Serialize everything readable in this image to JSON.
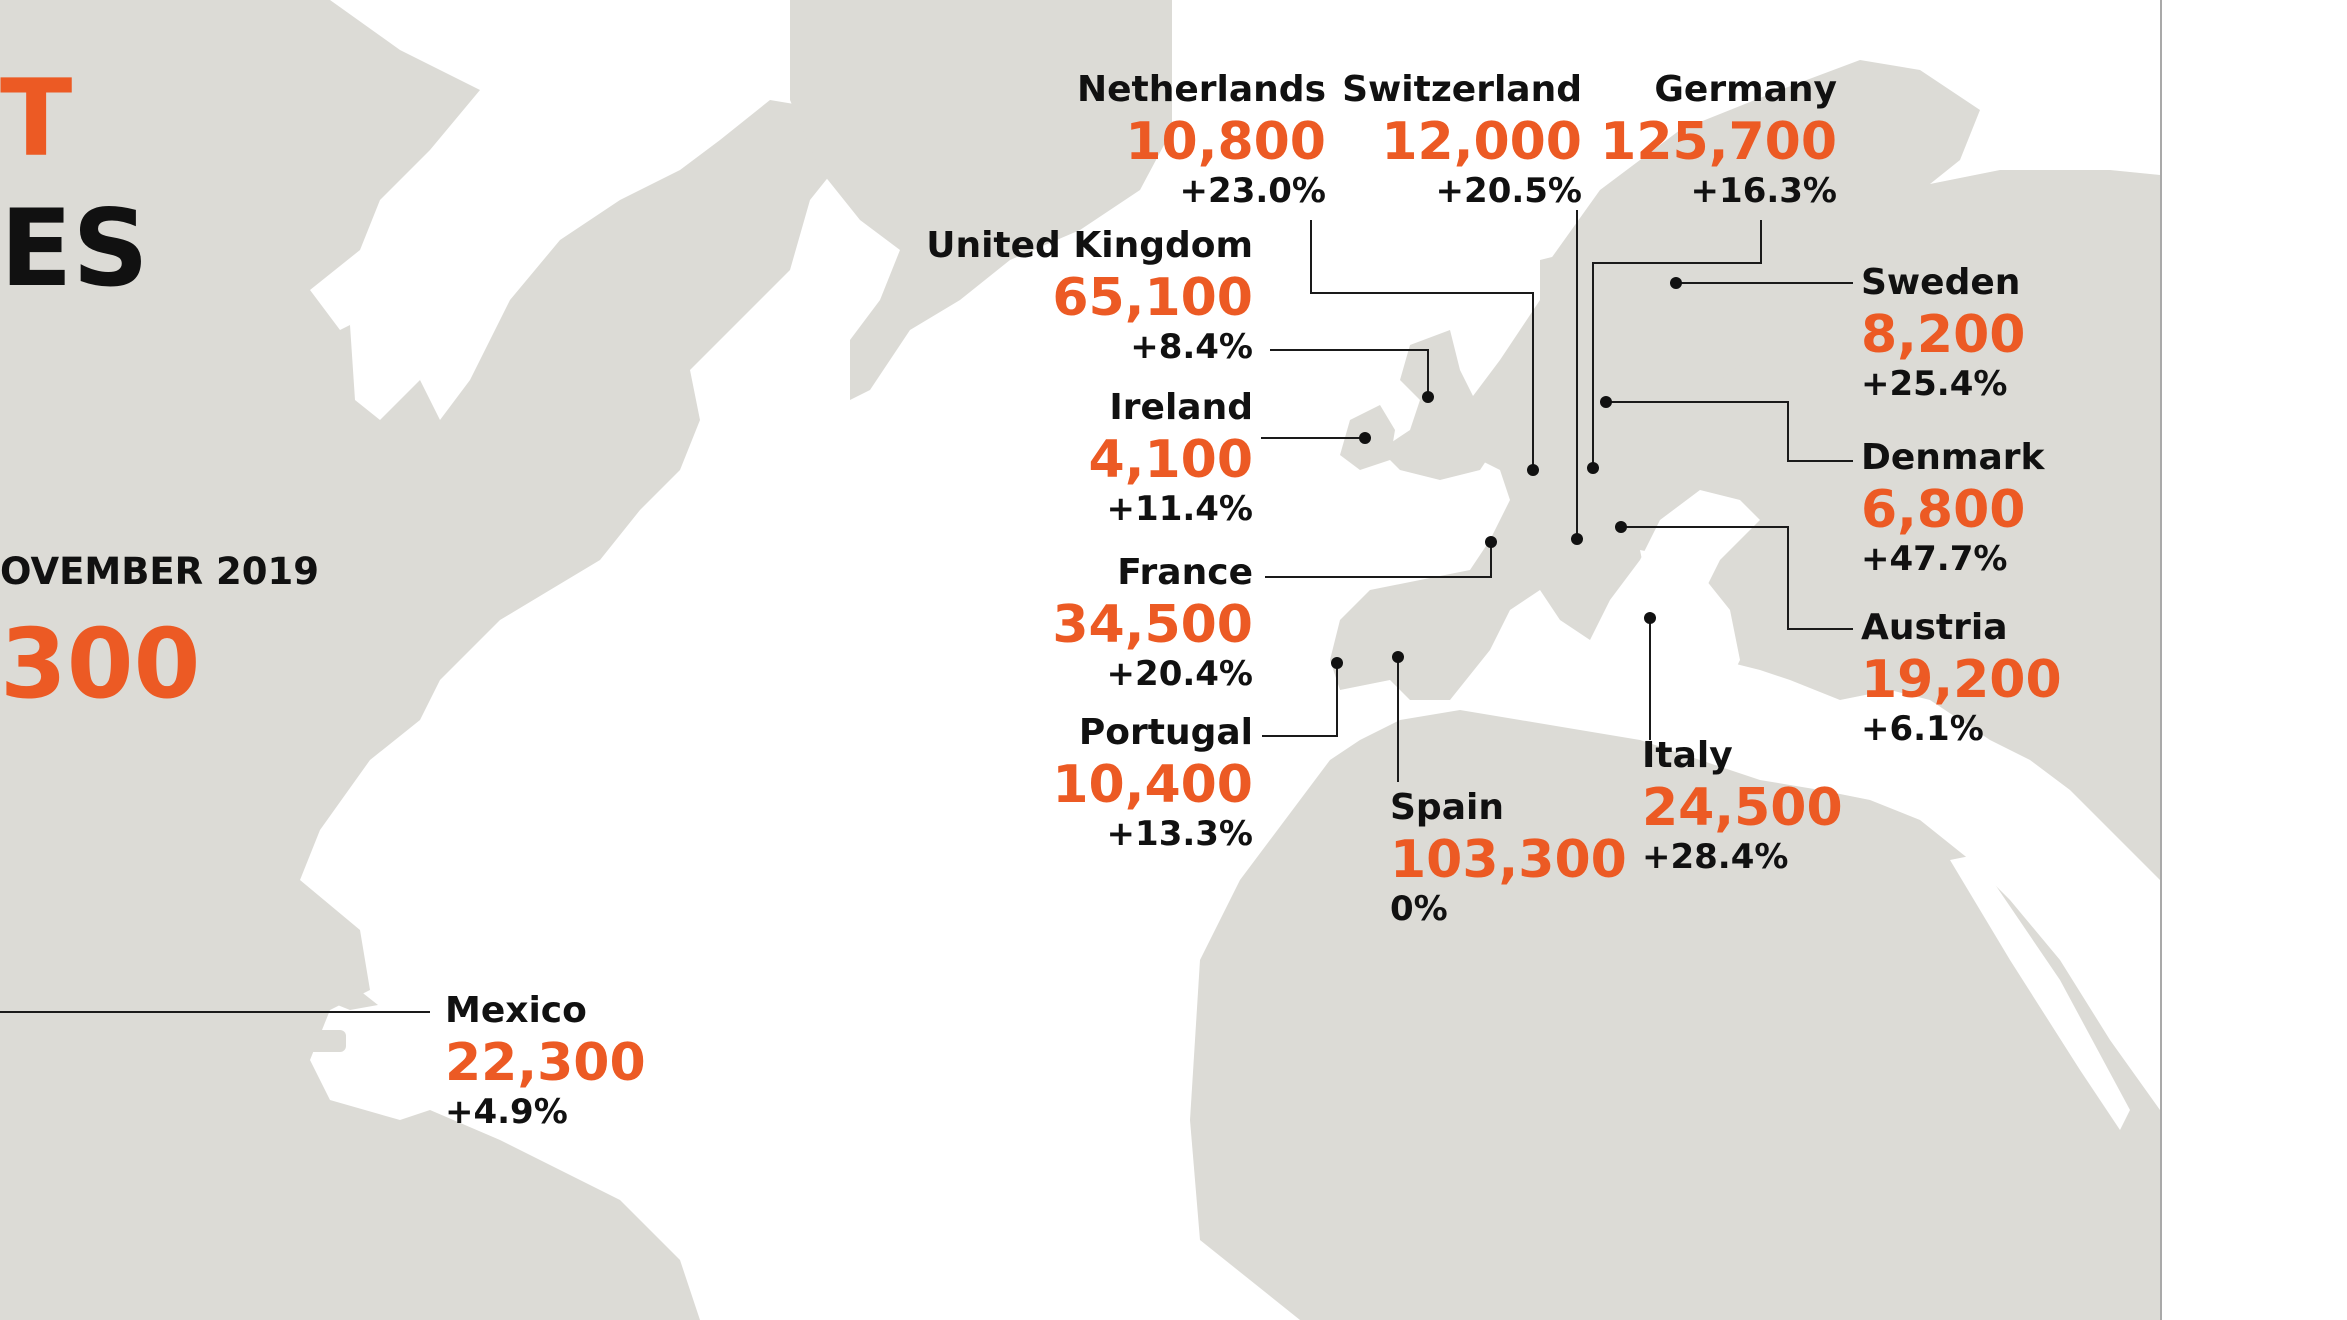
{
  "header": {
    "title_line1": "T",
    "title_line2": "ES",
    "period_label": "OVEMBER 2019",
    "total_value": "300"
  },
  "colors": {
    "accent": "#ec5a24",
    "text": "#111111",
    "land": "#dcdbd6",
    "background": "#ffffff"
  },
  "countries": {
    "netherlands": {
      "name": "Netherlands",
      "value": "10,800",
      "change": "+23.0%"
    },
    "switzerland": {
      "name": "Switzerland",
      "value": "12,000",
      "change": "+20.5%"
    },
    "germany": {
      "name": "Germany",
      "value": "125,700",
      "change": "+16.3%"
    },
    "united_kingdom": {
      "name": "United Kingdom",
      "value": "65,100",
      "change": "+8.4%"
    },
    "sweden": {
      "name": "Sweden",
      "value": "8,200",
      "change": "+25.4%"
    },
    "ireland": {
      "name": "Ireland",
      "value": "4,100",
      "change": "+11.4%"
    },
    "denmark": {
      "name": "Denmark",
      "value": "6,800",
      "change": "+47.7%"
    },
    "france": {
      "name": "France",
      "value": "34,500",
      "change": "+20.4%"
    },
    "austria": {
      "name": "Austria",
      "value": "19,200",
      "change": "+6.1%"
    },
    "portugal": {
      "name": "Portugal",
      "value": "10,400",
      "change": "+13.3%"
    },
    "italy": {
      "name": "Italy",
      "value": "24,500",
      "change": "+28.4%"
    },
    "spain": {
      "name": "Spain",
      "value": "103,300",
      "change": "0%"
    },
    "mexico": {
      "name": "Mexico",
      "value": "22,300",
      "change": "+4.9%"
    }
  }
}
